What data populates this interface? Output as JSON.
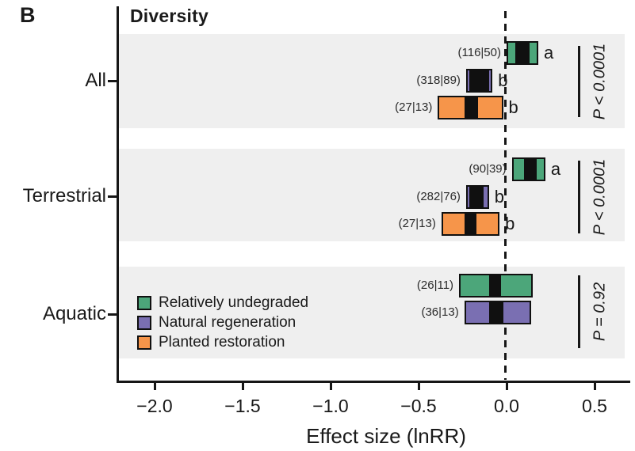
{
  "panel_label": "B",
  "chart_data": {
    "type": "bar",
    "subtype": "horizontal-forest-boxes",
    "title": "Diversity",
    "xlabel": "Effect size (lnRR)",
    "x_ticks": [
      -2.0,
      -1.5,
      -1.0,
      -0.5,
      0.0,
      0.5
    ],
    "x_tick_labels": [
      "−2.0",
      "−1.5",
      "−1.0",
      "−0.5",
      "0.0",
      "0.5"
    ],
    "xlim": [
      -2.21,
      0.67
    ],
    "zero_reference_line": 0.0,
    "grid": false,
    "legend_position": "inside-bottom-left",
    "colors": {
      "undegraded_green": "#4CA67A",
      "natural_regen_purple": "#7A6FB2",
      "planted_orange": "#F6954A",
      "estimate_black": "#101010",
      "band_gray": "#efefef"
    },
    "legend": [
      {
        "label": "Relatively undegraded",
        "color": "#4CA67A"
      },
      {
        "label": "Natural regeneration",
        "color": "#7A6FB2"
      },
      {
        "label": "Planted restoration",
        "color": "#F6954A"
      }
    ],
    "groups": [
      {
        "label": "All",
        "p_label": "P < 0.0001",
        "rows": [
          {
            "series": 0,
            "n_label": "(116|50)",
            "letter": "a",
            "ci": [
              0.0,
              0.18
            ],
            "est": [
              0.05,
              0.13
            ]
          },
          {
            "series": 1,
            "n_label": "(318|89)",
            "letter": "b",
            "ci": [
              -0.23,
              -0.08
            ],
            "est": [
              -0.21,
              -0.1
            ]
          },
          {
            "series": 2,
            "n_label": "(27|13)",
            "letter": "b",
            "ci": [
              -0.39,
              -0.02
            ],
            "est": [
              -0.24,
              -0.16
            ]
          }
        ]
      },
      {
        "label": "Terrestrial",
        "p_label": "P < 0.0001",
        "rows": [
          {
            "series": 0,
            "n_label": "(90|39)",
            "letter": "a",
            "ci": [
              0.03,
              0.22
            ],
            "est": [
              0.1,
              0.17
            ]
          },
          {
            "series": 1,
            "n_label": "(282|76)",
            "letter": "b",
            "ci": [
              -0.23,
              -0.1
            ],
            "est": [
              -0.21,
              -0.13
            ]
          },
          {
            "series": 2,
            "n_label": "(27|13)",
            "letter": "b",
            "ci": [
              -0.37,
              -0.04
            ],
            "est": [
              -0.24,
              -0.17
            ]
          }
        ]
      },
      {
        "label": "Aquatic",
        "p_label": "P = 0.92",
        "rows": [
          {
            "series": 0,
            "n_label": "(26|11)",
            "letter": "",
            "ci": [
              -0.27,
              0.15
            ],
            "est": [
              -0.1,
              -0.03
            ]
          },
          {
            "series": 1,
            "n_label": "(36|13)",
            "letter": "",
            "ci": [
              -0.24,
              0.14
            ],
            "est": [
              -0.1,
              -0.02
            ]
          }
        ]
      }
    ]
  }
}
